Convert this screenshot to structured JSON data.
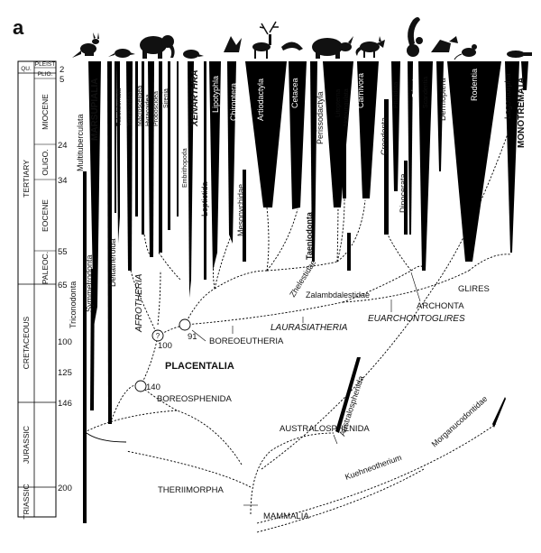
{
  "panel_label": "a",
  "timescale": {
    "eras": [
      "TERTIARY",
      "CRETACEOUS",
      "JURASSIC",
      "TRIASSIC"
    ],
    "epochs": [
      "QU.",
      "PLEIST",
      "PLIO.",
      "MIOCENE",
      "OLIGO.",
      "EOCENE",
      "PALEOC."
    ],
    "ages_ma": [
      "2",
      "5",
      "24",
      "34",
      "55",
      "65",
      "100",
      "125",
      "146",
      "200"
    ]
  },
  "taxa_top": [
    "Multituberculata",
    "MARSUPIALIA",
    "Tubulidentata",
    "Tenrecoidea",
    "Macroscelidea",
    "Hyracoidea",
    "Proboscidea",
    "Sirenia",
    "Embrithopoda",
    "XENARTHRA",
    "Lipotyphla",
    "Chiroptera",
    "Artiodactyla",
    "Cetacea",
    "Perissodactyla",
    "Litopterna",
    "Notoungulata",
    "Carnivora",
    "Creodonta",
    "Pholidota",
    "Primates",
    "Scandentia",
    "Dermoptera",
    "Rodentia",
    "Lagomorpha",
    "MONOTREMATA"
  ],
  "taxa_mid": [
    "Triconodonta",
    "Symmetrodonta",
    "Deltatheroida",
    "AFROTHERIA",
    "Leptictida",
    "Mesonychidae",
    "Taeniodonta",
    "Zhelestidae",
    "Zalambdalestidae",
    "Dinocerata",
    "Australosphenida",
    "Kuehneotherium",
    "Morganucodontidae"
  ],
  "clades": [
    "PLACENTALIA",
    "BOREOSPHENIDA",
    "BOREOEUTHERIA",
    "LAURASIATHERIA",
    "EUARCHONTOGLIRES",
    "ARCHONTA",
    "GLIRES",
    "AUSTRALOSPHENIDA",
    "THERIIMORPHA",
    "MAMMALIA"
  ],
  "node_marks": [
    "100",
    "91",
    "140",
    "?"
  ],
  "silhouettes": [
    "kangaroo-icon",
    "armadillo-icon",
    "elephant-icon",
    "hedgehog-icon",
    "bat-icon",
    "deer-icon",
    "whale-icon",
    "rhino-icon",
    "fox-icon",
    "lemur-icon",
    "colugo-icon",
    "rat-icon",
    "platypus-icon"
  ]
}
